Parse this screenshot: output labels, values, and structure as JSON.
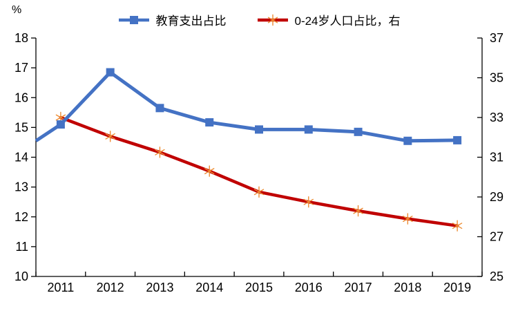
{
  "chart_data": {
    "type": "line",
    "title": "",
    "unit_label": "%",
    "legend_position": "top",
    "categories": [
      "2011",
      "2012",
      "2013",
      "2014",
      "2015",
      "2016",
      "2017",
      "2018",
      "2019"
    ],
    "left_axis": {
      "label": "%",
      "min": 10,
      "max": 18,
      "ticks": [
        18,
        17,
        16,
        15,
        14,
        13,
        12,
        11,
        10
      ]
    },
    "right_axis": {
      "min": 25,
      "max": 37,
      "ticks": [
        37,
        35,
        33,
        31,
        29,
        27,
        25
      ]
    },
    "series": [
      {
        "name": "教育支出占比",
        "axis": "left",
        "color": "#4472C4",
        "marker": "square",
        "edge_start": 14.55,
        "values": [
          15.1,
          16.85,
          15.65,
          15.17,
          14.93,
          14.93,
          14.85,
          14.55,
          14.57
        ]
      },
      {
        "name": "0-24岁人口占比，右",
        "axis": "right",
        "color": "#C00000",
        "marker": "star",
        "marker_color": "#ED8C32",
        "values": [
          33.0,
          32.05,
          31.25,
          30.3,
          29.25,
          28.75,
          28.3,
          27.9,
          27.55
        ]
      }
    ],
    "axis_color": "#000000",
    "text_color": "#000000"
  }
}
